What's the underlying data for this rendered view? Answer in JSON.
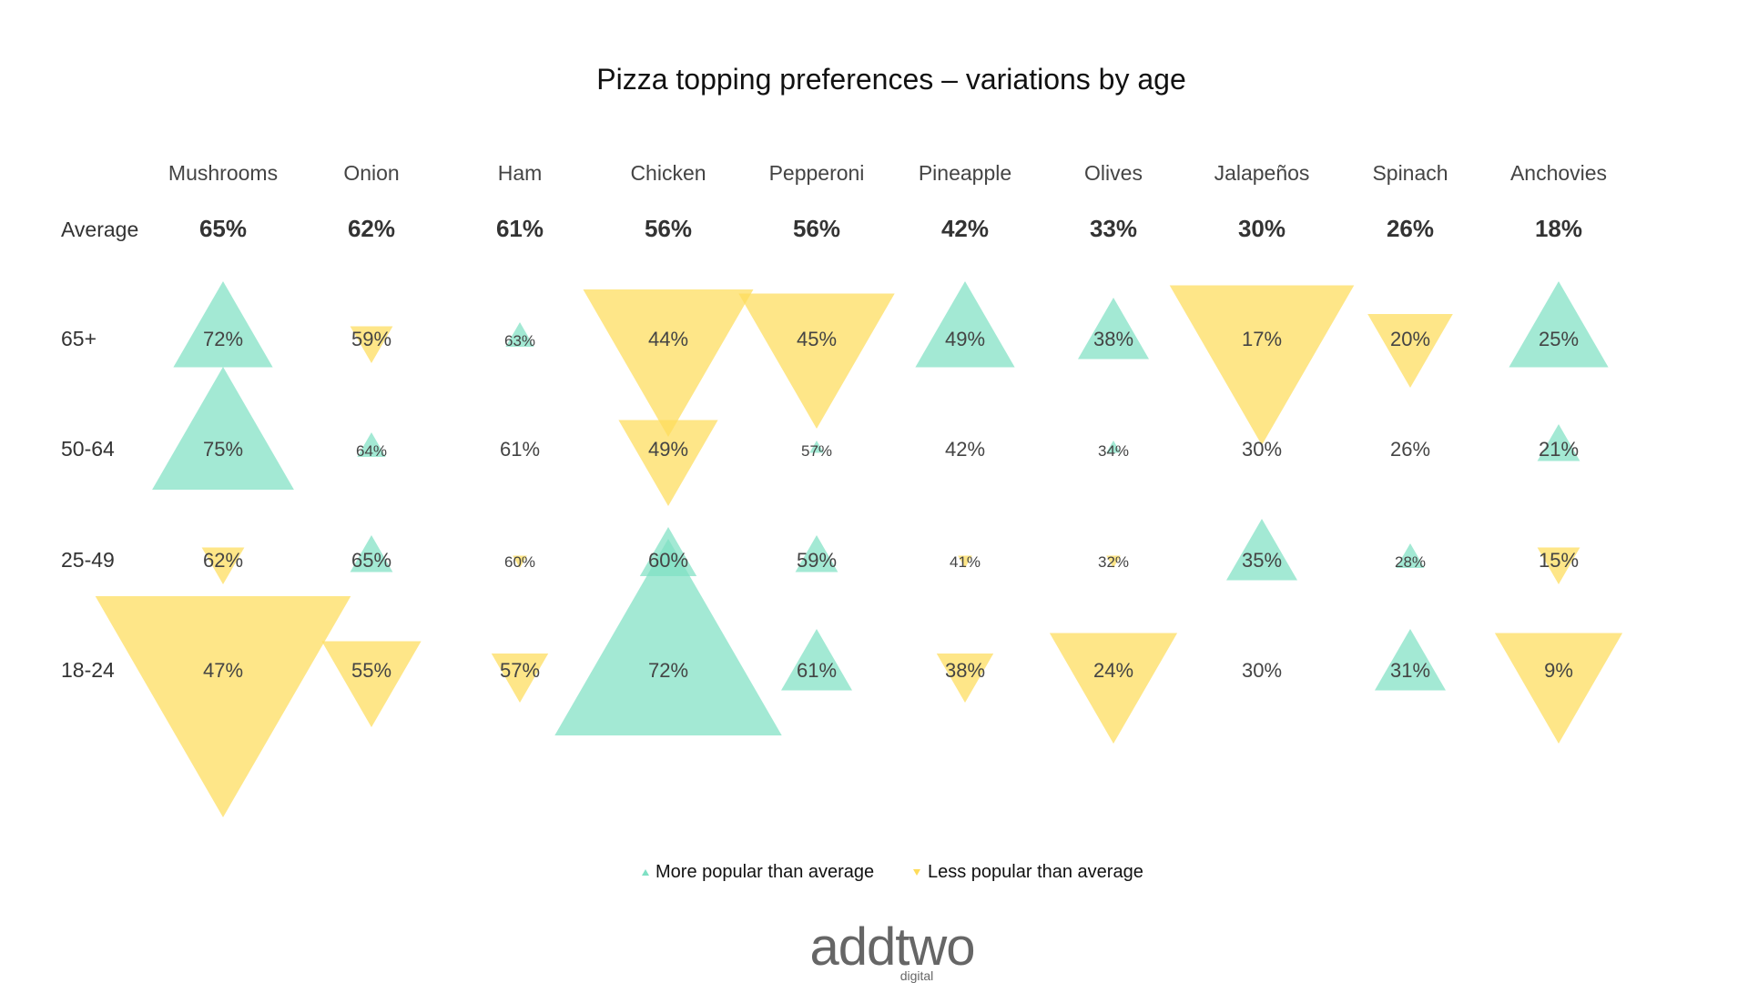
{
  "chart_data": {
    "type": "triangle-matrix",
    "title": "Pizza topping preferences – variations by age",
    "average_label": "Average",
    "toppings": [
      "Mushrooms",
      "Onion",
      "Ham",
      "Chicken",
      "Pepperoni",
      "Pineapple",
      "Olives",
      "Jalapeños",
      "Spinach",
      "Anchovies"
    ],
    "average_values": [
      65,
      62,
      61,
      56,
      56,
      42,
      33,
      30,
      26,
      18
    ],
    "age_groups": [
      "65+",
      "50-64",
      "25-49",
      "18-24"
    ],
    "values": [
      [
        72,
        59,
        63,
        44,
        45,
        49,
        38,
        17,
        20,
        25
      ],
      [
        75,
        64,
        61,
        49,
        57,
        42,
        34,
        30,
        26,
        21
      ],
      [
        62,
        65,
        60,
        60,
        59,
        41,
        32,
        35,
        28,
        15
      ],
      [
        47,
        55,
        57,
        72,
        61,
        38,
        24,
        30,
        31,
        9
      ]
    ],
    "unit": "%",
    "legend": {
      "more": "More popular than average",
      "less": "Less popular than average"
    },
    "colors": {
      "more": "#7fe0c4",
      "less": "#fedc5a"
    }
  },
  "logo": {
    "main": "addtwo",
    "sub": "digital"
  }
}
